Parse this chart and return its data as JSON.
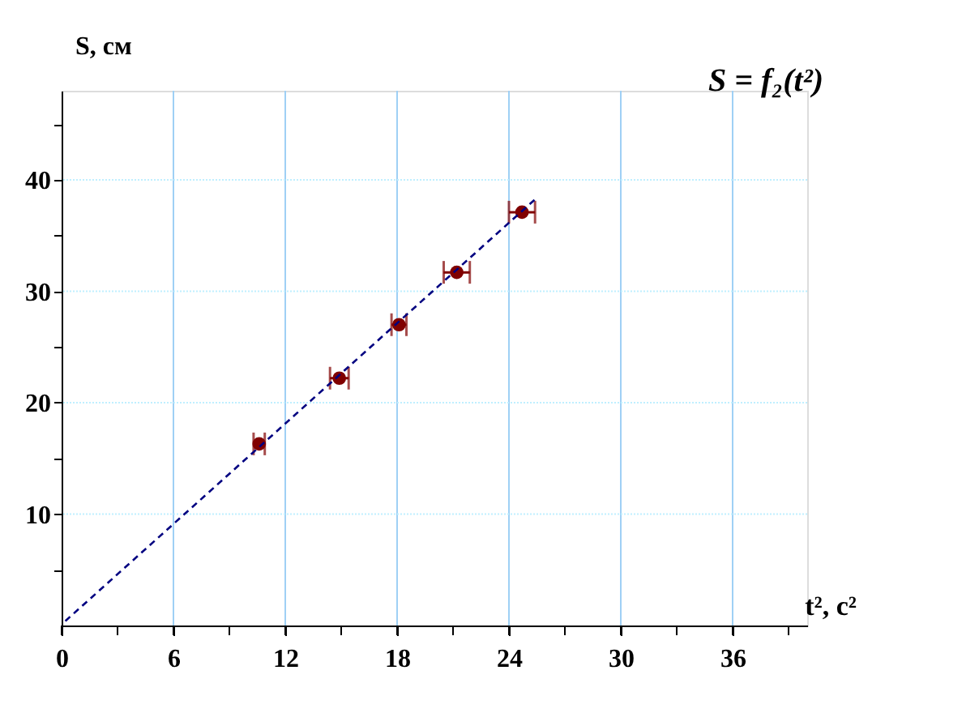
{
  "chart_data": {
    "type": "scatter",
    "title": "S = f₂(t²)",
    "xlabel": "t², с²",
    "ylabel": "S, см",
    "xlim": [
      0,
      40
    ],
    "ylim": [
      0,
      48
    ],
    "xticks": [
      0,
      {
        "value": 3,
        "label": null
      },
      6,
      {
        "value": 9,
        "label": null
      },
      12,
      {
        "value": 15,
        "label": null
      },
      18,
      {
        "value": 21,
        "label": null
      },
      24,
      {
        "value": 27,
        "label": null
      },
      30,
      {
        "value": 33,
        "label": null
      },
      36,
      {
        "value": 39,
        "label": null
      }
    ],
    "yticks": [
      {
        "value": 5,
        "label": null
      },
      10,
      {
        "value": 15,
        "label": null
      },
      20,
      {
        "value": 25,
        "label": null
      },
      30,
      {
        "value": 35,
        "label": null
      },
      40,
      {
        "value": 45,
        "label": null
      }
    ],
    "grid": true,
    "series": [
      {
        "color": "#800000",
        "marker": "circle",
        "x": [
          10.6,
          14.9,
          18.1,
          21.2,
          24.7
        ],
        "values": [
          16.3,
          22.2,
          27.0,
          31.7,
          37.1
        ],
        "xerrors": [
          0.3,
          0.5,
          0.4,
          0.7,
          0.7
        ]
      },
      {
        "type": "line",
        "color": "#000080",
        "line_style": "dashed",
        "x": [
          0.2,
          25.5
        ],
        "values": [
          0.4,
          38.4
        ]
      }
    ]
  }
}
